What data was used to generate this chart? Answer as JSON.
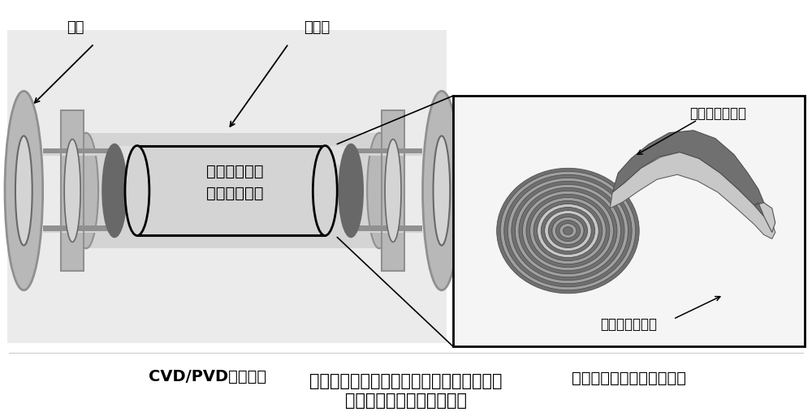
{
  "bg_color": "#ffffff",
  "title_line1": "可实现柔性耐高温衬底与隔层复卷整体生长",
  "title_line2": "的化学或物理气相沉积系统",
  "label_zhijia": "支架",
  "label_shiyingguan": "石英管",
  "label_center_box": "柔性耐高温衬\n底与隔层复卷",
  "label_cvd": "CVD/PVD生长腔室",
  "label_roll_caption": "柔性耐高温衬底与隔层复卷",
  "label_top_layer": "柔性耐高温隔层",
  "label_bottom_layer": "柔性耐高温衬底",
  "title_fontsize": 15,
  "label_fontsize": 13,
  "annot_fontsize": 12,
  "c_bg": "#f0f0f0",
  "c_light": "#d4d4d4",
  "c_mid": "#b8b8b8",
  "c_dark": "#909090",
  "c_darker": "#686868",
  "c_roll_dark": "#707070",
  "c_roll_med": "#a0a0a0",
  "c_roll_light": "#c8c8c8",
  "c_white": "#e8e8e8",
  "c_black": "#000000"
}
